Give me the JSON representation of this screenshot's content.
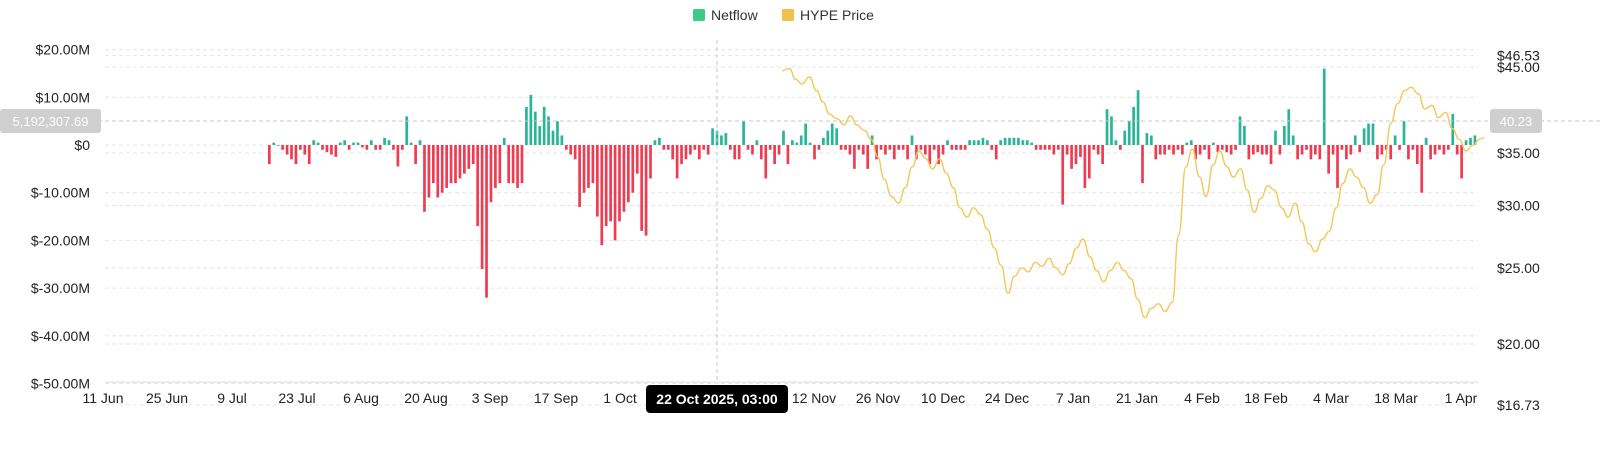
{
  "chart_data": {
    "type": "bar",
    "legend": {
      "placement": "top-center",
      "items": [
        {
          "label": "Netflow",
          "color": "#3dc98a"
        },
        {
          "label": "HYPE Price",
          "color": "#f0c24b"
        }
      ]
    },
    "x_tick_labels": [
      "11 Jun",
      "25 Jun",
      "9 Jul",
      "23 Jul",
      "6 Aug",
      "20 Aug",
      "3 Sep",
      "17 Sep",
      "1 Oct",
      "22 Oct 2025, 03:00",
      "12 Nov",
      "26 Nov",
      "10 Dec",
      "24 Dec",
      "7 Jan",
      "21 Jan",
      "4 Feb",
      "18 Feb",
      "4 Mar",
      "18 Mar",
      "1 Apr"
    ],
    "y_left": {
      "ticks": [
        "$20.00M",
        "$10.00M",
        "$0",
        "$-10.00M",
        "$-20.00M",
        "$-30.00M",
        "$-40.00M",
        "$-50.00M"
      ],
      "range": [
        -50,
        20
      ],
      "unit": "$M"
    },
    "y_right": {
      "ticks": [
        "$46.53",
        "$45.00",
        "$35.00",
        "$30.00",
        "$25.00",
        "$20.00",
        "$16.73"
      ],
      "range": [
        16.73,
        46.53
      ],
      "scale": "log"
    },
    "crosshair": {
      "x_label": "22 Oct 2025, 03:00",
      "left_value": "5,192,307.69",
      "right_value": "40.23"
    },
    "colors": {
      "positive": "#2bb596",
      "negative": "#ee3d52",
      "price": "#f3c85a",
      "grid": "#e6e6e6",
      "crosshair": "#c8c8c8"
    },
    "grid": true,
    "netflow_series": {
      "name": "Netflow",
      "values_million_usd": [
        -4,
        0.5,
        0,
        -1,
        -2,
        -3,
        -4,
        -1,
        -2,
        -4,
        1,
        0.5,
        -1,
        -1.5,
        -2,
        -2.5,
        0.5,
        1,
        -1,
        0.5,
        0.5,
        -0.5,
        -1,
        1,
        -1,
        -1,
        1.5,
        1,
        -1,
        -4.5,
        -1,
        6,
        0.5,
        -4,
        1,
        -14,
        -11,
        -8,
        -11,
        -10,
        -9,
        -8,
        -8,
        -7,
        -6,
        -5,
        -4,
        -17,
        -26,
        -32,
        -12,
        -9,
        -8,
        1.5,
        -8,
        -8,
        -9,
        -8,
        8,
        10.5,
        7,
        4,
        8,
        6,
        3,
        5,
        2,
        -1,
        -2,
        -3,
        -13,
        -10,
        -9,
        -8,
        -15,
        -21,
        -17,
        -16,
        -20,
        -16,
        -14,
        -12,
        -10,
        -6,
        -18,
        -19,
        -7,
        1,
        1.5,
        -1,
        -1,
        -3,
        -7,
        -4,
        -3,
        -2,
        -1,
        -3,
        -1,
        -2,
        3.5,
        3,
        2,
        2.5,
        -1,
        -3,
        -3,
        5,
        -1,
        -2,
        1,
        -3,
        -7,
        -1,
        -4,
        -2,
        3,
        -4,
        1,
        0.5,
        2,
        4.5,
        0.5,
        -3,
        -1,
        1.5,
        3,
        4.5,
        3.5,
        -1,
        -1,
        -2,
        -5,
        -1,
        -2,
        -5,
        2,
        -3,
        -1,
        -2,
        -1,
        -3,
        -1,
        -1,
        -3,
        2,
        -3,
        -1,
        -2,
        -4,
        -1,
        -4,
        -2,
        1,
        -1,
        -1,
        -1,
        -1,
        1,
        1,
        1,
        1.5,
        1,
        -1,
        -3,
        1,
        1.5,
        1.5,
        1.5,
        1.5,
        1,
        1,
        0.5,
        -1,
        -1,
        -1,
        -1,
        -2,
        -1,
        -12.5,
        -2,
        -5,
        -4,
        -2.5,
        -9,
        -7,
        -1,
        -2,
        -4,
        7.5,
        6,
        1,
        -1,
        3,
        5,
        8,
        11.5,
        -8,
        2.5,
        2,
        -3,
        -2,
        -2,
        -1,
        -2,
        -1,
        -2,
        0.5,
        1,
        -3,
        -2,
        -1,
        -3,
        0.5,
        -1.5,
        -1,
        -1.5,
        -2,
        -1,
        6,
        4,
        -3,
        -2,
        -1.5,
        -2,
        -2,
        -4,
        3,
        -2,
        4,
        7.5,
        2,
        -3,
        -2,
        -1,
        -3,
        -2,
        -3,
        16,
        -6,
        -2,
        -9,
        -1,
        -3,
        -2,
        2,
        -1.5,
        3.5,
        4.5,
        4.5,
        -3,
        -2,
        -1,
        -3,
        2,
        -1,
        5,
        -3,
        -1,
        -4,
        -10,
        1.5,
        -3,
        -2,
        -1,
        -2,
        -1,
        6.5,
        -2,
        -7,
        1,
        1.5,
        2
      ]
    },
    "price_series": {
      "name": "HYPE Price",
      "points": [
        [
          0.0,
          44.5
        ],
        [
          0.8,
          44.8
        ],
        [
          1.5,
          43.4
        ],
        [
          2.2,
          42.8
        ],
        [
          3.0,
          43.7
        ],
        [
          3.8,
          42.0
        ],
        [
          4.5,
          40.6
        ],
        [
          5.2,
          39.2
        ],
        [
          6.0,
          38.7
        ],
        [
          6.8,
          38.0
        ],
        [
          7.5,
          39.0
        ],
        [
          8.2,
          38.0
        ],
        [
          9.0,
          37.4
        ],
        [
          9.8,
          36.4
        ],
        [
          10.5,
          34.6
        ],
        [
          11.2,
          32.4
        ],
        [
          12.0,
          30.8
        ],
        [
          12.8,
          30.2
        ],
        [
          13.5,
          31.6
        ],
        [
          14.3,
          33.6
        ],
        [
          15.0,
          35.2
        ],
        [
          15.8,
          34.4
        ],
        [
          16.5,
          33.4
        ],
        [
          17.3,
          34.4
        ],
        [
          18.0,
          33.0
        ],
        [
          18.8,
          31.6
        ],
        [
          19.5,
          29.8
        ],
        [
          20.3,
          29.0
        ],
        [
          21.0,
          29.8
        ],
        [
          21.8,
          29.2
        ],
        [
          22.5,
          28.0
        ],
        [
          23.3,
          26.5
        ],
        [
          24.0,
          25.2
        ],
        [
          24.8,
          23.2
        ],
        [
          25.5,
          24.4
        ],
        [
          26.3,
          25.0
        ],
        [
          27.0,
          24.7
        ],
        [
          27.8,
          25.4
        ],
        [
          28.5,
          25.1
        ],
        [
          29.3,
          25.7
        ],
        [
          30.0,
          25.0
        ],
        [
          30.8,
          24.5
        ],
        [
          31.5,
          25.3
        ],
        [
          32.3,
          26.5
        ],
        [
          33.0,
          27.2
        ],
        [
          33.8,
          25.8
        ],
        [
          34.5,
          24.8
        ],
        [
          35.3,
          24.0
        ],
        [
          36.0,
          24.8
        ],
        [
          36.8,
          25.4
        ],
        [
          37.5,
          24.8
        ],
        [
          38.3,
          24.2
        ],
        [
          39.0,
          22.8
        ],
        [
          39.8,
          21.6
        ],
        [
          40.5,
          22.2
        ],
        [
          41.3,
          22.5
        ],
        [
          42.0,
          22.0
        ],
        [
          42.8,
          22.6
        ],
        [
          43.5,
          27.5
        ],
        [
          44.3,
          33.6
        ],
        [
          45.0,
          35.4
        ],
        [
          45.8,
          32.6
        ],
        [
          46.5,
          30.8
        ],
        [
          47.3,
          33.8
        ],
        [
          48.0,
          35.2
        ],
        [
          48.8,
          33.6
        ],
        [
          49.5,
          32.6
        ],
        [
          50.3,
          33.4
        ],
        [
          51.0,
          31.4
        ],
        [
          51.8,
          29.4
        ],
        [
          52.5,
          30.6
        ],
        [
          53.3,
          31.8
        ],
        [
          54.0,
          31.4
        ],
        [
          54.8,
          29.8
        ],
        [
          55.5,
          29.0
        ],
        [
          56.3,
          30.2
        ],
        [
          57.0,
          28.6
        ],
        [
          57.8,
          26.8
        ],
        [
          58.5,
          26.2
        ],
        [
          59.3,
          27.2
        ],
        [
          60.0,
          27.8
        ],
        [
          60.8,
          29.8
        ],
        [
          61.5,
          32.0
        ],
        [
          62.3,
          33.4
        ],
        [
          63.0,
          32.6
        ],
        [
          63.8,
          31.6
        ],
        [
          64.5,
          30.2
        ],
        [
          65.3,
          31.0
        ],
        [
          66.0,
          33.8
        ],
        [
          66.8,
          38.2
        ],
        [
          67.5,
          40.4
        ],
        [
          68.3,
          42.0
        ],
        [
          69.0,
          42.4
        ],
        [
          69.8,
          41.6
        ],
        [
          70.5,
          39.8
        ],
        [
          71.3,
          40.2
        ],
        [
          72.0,
          38.8
        ],
        [
          72.8,
          39.4
        ],
        [
          73.5,
          37.6
        ],
        [
          74.3,
          36.4
        ],
        [
          75.0,
          35.2
        ],
        [
          75.8,
          35.8
        ],
        [
          76.5,
          36.4
        ],
        [
          77.0,
          36.6
        ]
      ]
    }
  }
}
